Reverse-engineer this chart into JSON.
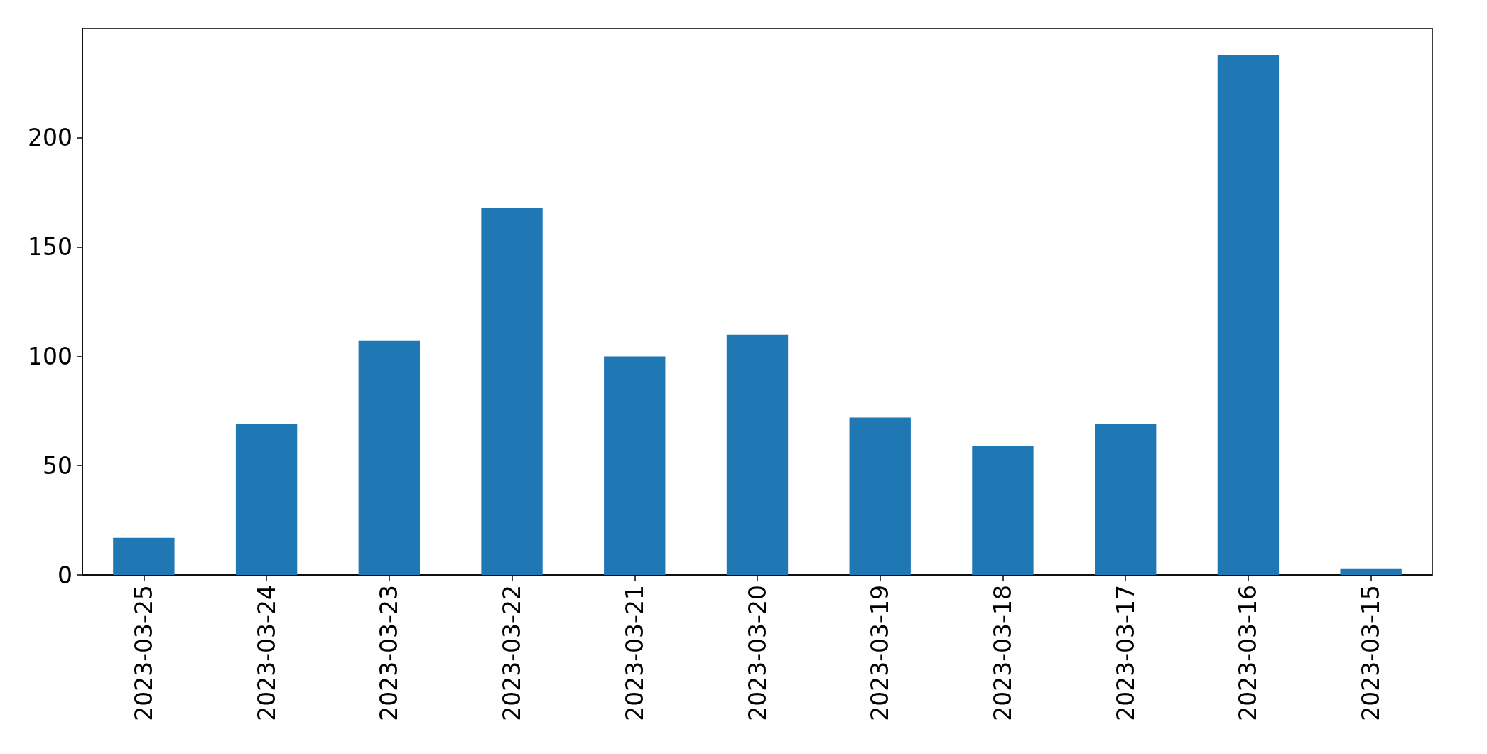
{
  "chart_data": {
    "type": "bar",
    "categories": [
      "2023-03-25",
      "2023-03-24",
      "2023-03-23",
      "2023-03-22",
      "2023-03-21",
      "2023-03-20",
      "2023-03-19",
      "2023-03-18",
      "2023-03-17",
      "2023-03-16",
      "2023-03-15"
    ],
    "values": [
      17,
      69,
      107,
      168,
      100,
      110,
      72,
      59,
      69,
      238,
      3
    ],
    "color": "#1f77b4",
    "ylim": [
      0,
      250
    ],
    "yticks": [
      0,
      50,
      100,
      150,
      200
    ],
    "grid": false
  }
}
